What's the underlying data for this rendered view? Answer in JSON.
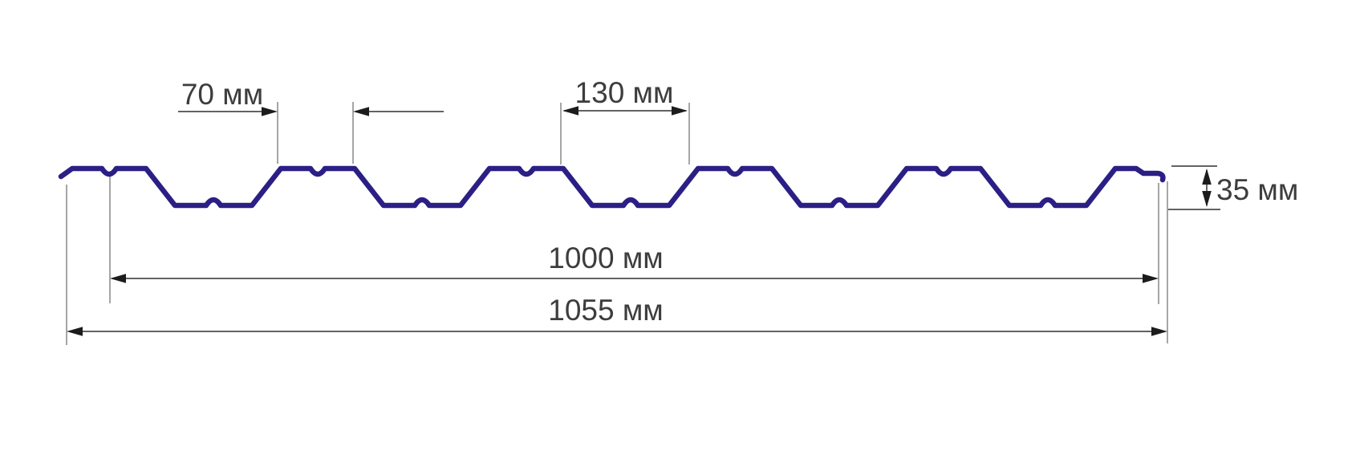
{
  "figure": {
    "kind": "technical-drawing",
    "subject": "trapezoidal profiled sheet cross-section",
    "background": "#ffffff",
    "units_suffix": "мм"
  },
  "labels": {
    "crest_top_width": "70 мм",
    "rib_spacing": "130 мм",
    "profile_height": "35 мм",
    "working_width": "1000 мм",
    "overall_width": "1055 мм"
  },
  "values_mm": {
    "crest_top_width": 70,
    "rib_spacing": 130,
    "profile_height": 35,
    "working_width": 1000,
    "overall_width": 1055
  },
  "profile": {
    "crest_count": 6,
    "trough_count": 5,
    "has_center_notches": true,
    "left_edge": "beveled tip",
    "right_edge": "stepped hook lip"
  },
  "colors": {
    "sheet_profile": "#2b1f85",
    "dimension_lines": "#4d4d4d",
    "extension_lines": "#8f8f8f",
    "arrowheads": "#1c1c1c",
    "label_text": "#3d3d3d"
  }
}
